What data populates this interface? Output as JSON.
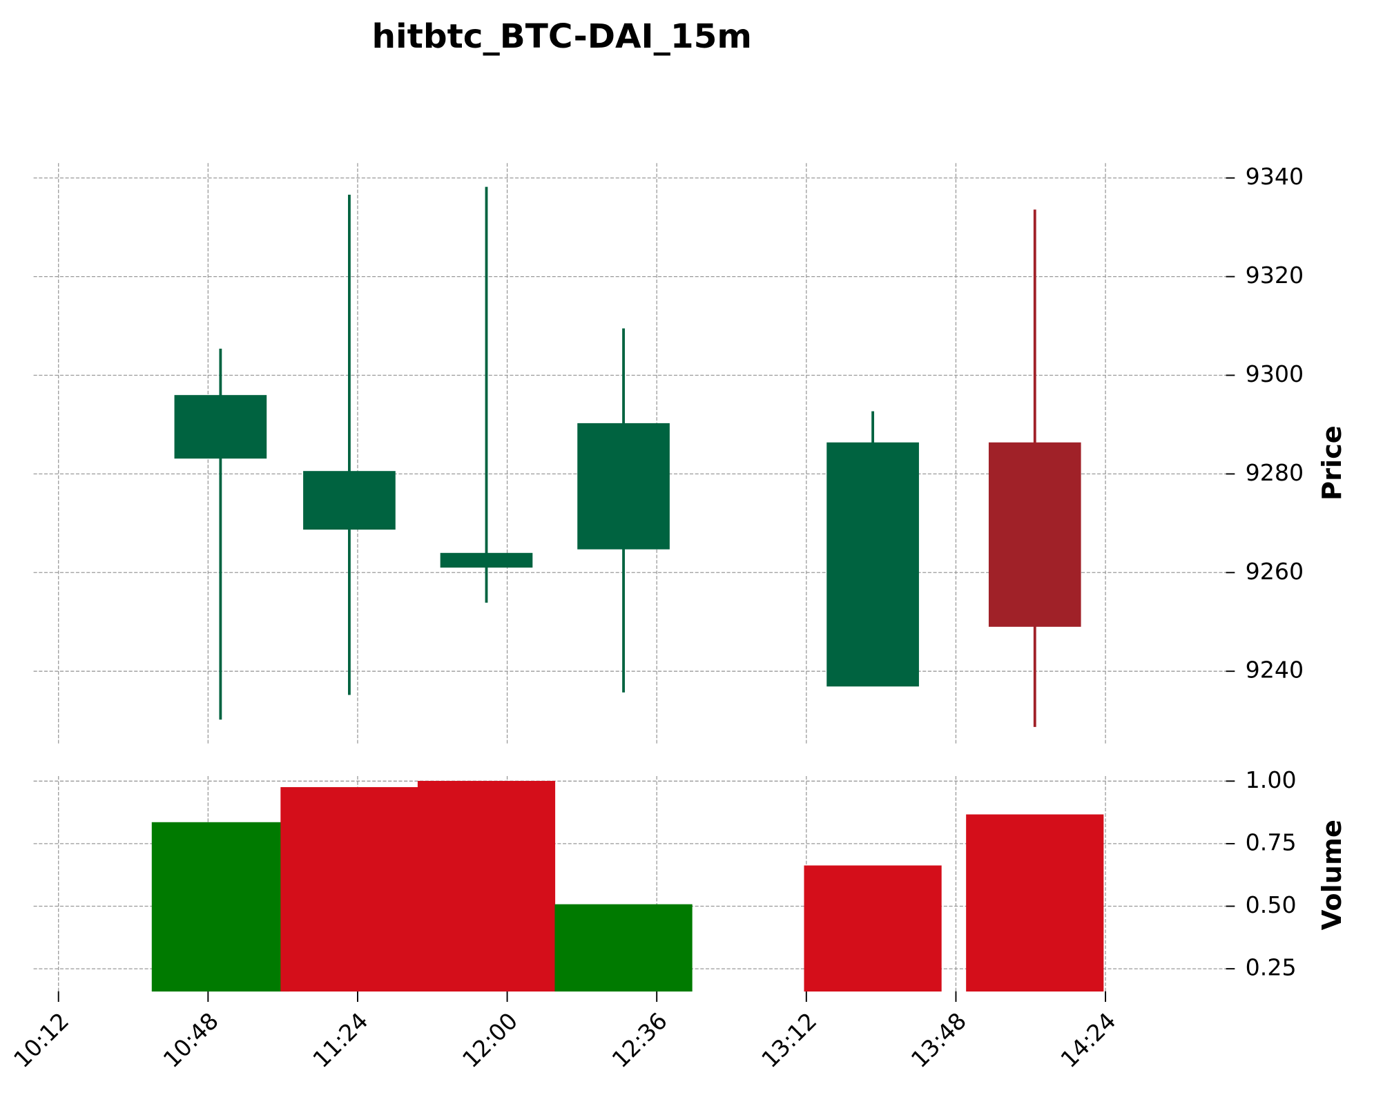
{
  "chart_data": {
    "type": "candlestick",
    "title": "hitbtc_BTC-DAI_15m",
    "x": [
      "10:51",
      "11:22",
      "11:55",
      "12:28",
      "13:28",
      "14:07"
    ],
    "open": [
      9283.2,
      9268.8,
      9261.1,
      9264.8,
      9237.0,
      9286.3
    ],
    "high": [
      9305.4,
      9336.6,
      9338.2,
      9309.5,
      9292.7,
      9333.6
    ],
    "low": [
      9230.2,
      9235.2,
      9253.9,
      9235.7,
      9237.0,
      9228.7
    ],
    "close": [
      9295.9,
      9280.5,
      9263.9,
      9290.2,
      9286.3,
      9249.1
    ],
    "up_color": "#006340",
    "down_color": "#a02128",
    "ylabel": "Price",
    "ylim": [
      9225,
      9343
    ],
    "yticks": [
      9240,
      9260,
      9280,
      9300,
      9320,
      9340
    ],
    "xlim": [
      "10:06",
      "14:53"
    ],
    "xticks": [
      "10:12",
      "10:48",
      "11:24",
      "12:00",
      "12:36",
      "13:12",
      "13:48",
      "14:24"
    ],
    "grid": true,
    "volume": {
      "ylabel": "Volume",
      "values": [
        0.835,
        0.975,
        1.0,
        0.507,
        0.662,
        0.866
      ],
      "colors": [
        "#007a00",
        "#d40e1a",
        "#d40e1a",
        "#007a00",
        "#d40e1a",
        "#d40e1a"
      ],
      "ylim": [
        0.16,
        1.02
      ],
      "yticks": [
        {
          "value": 0.25,
          "label": "0.25"
        },
        {
          "value": 0.5,
          "label": "0.50"
        },
        {
          "value": 0.75,
          "label": "0.75"
        },
        {
          "value": 1.0,
          "label": "1.00"
        }
      ]
    }
  }
}
